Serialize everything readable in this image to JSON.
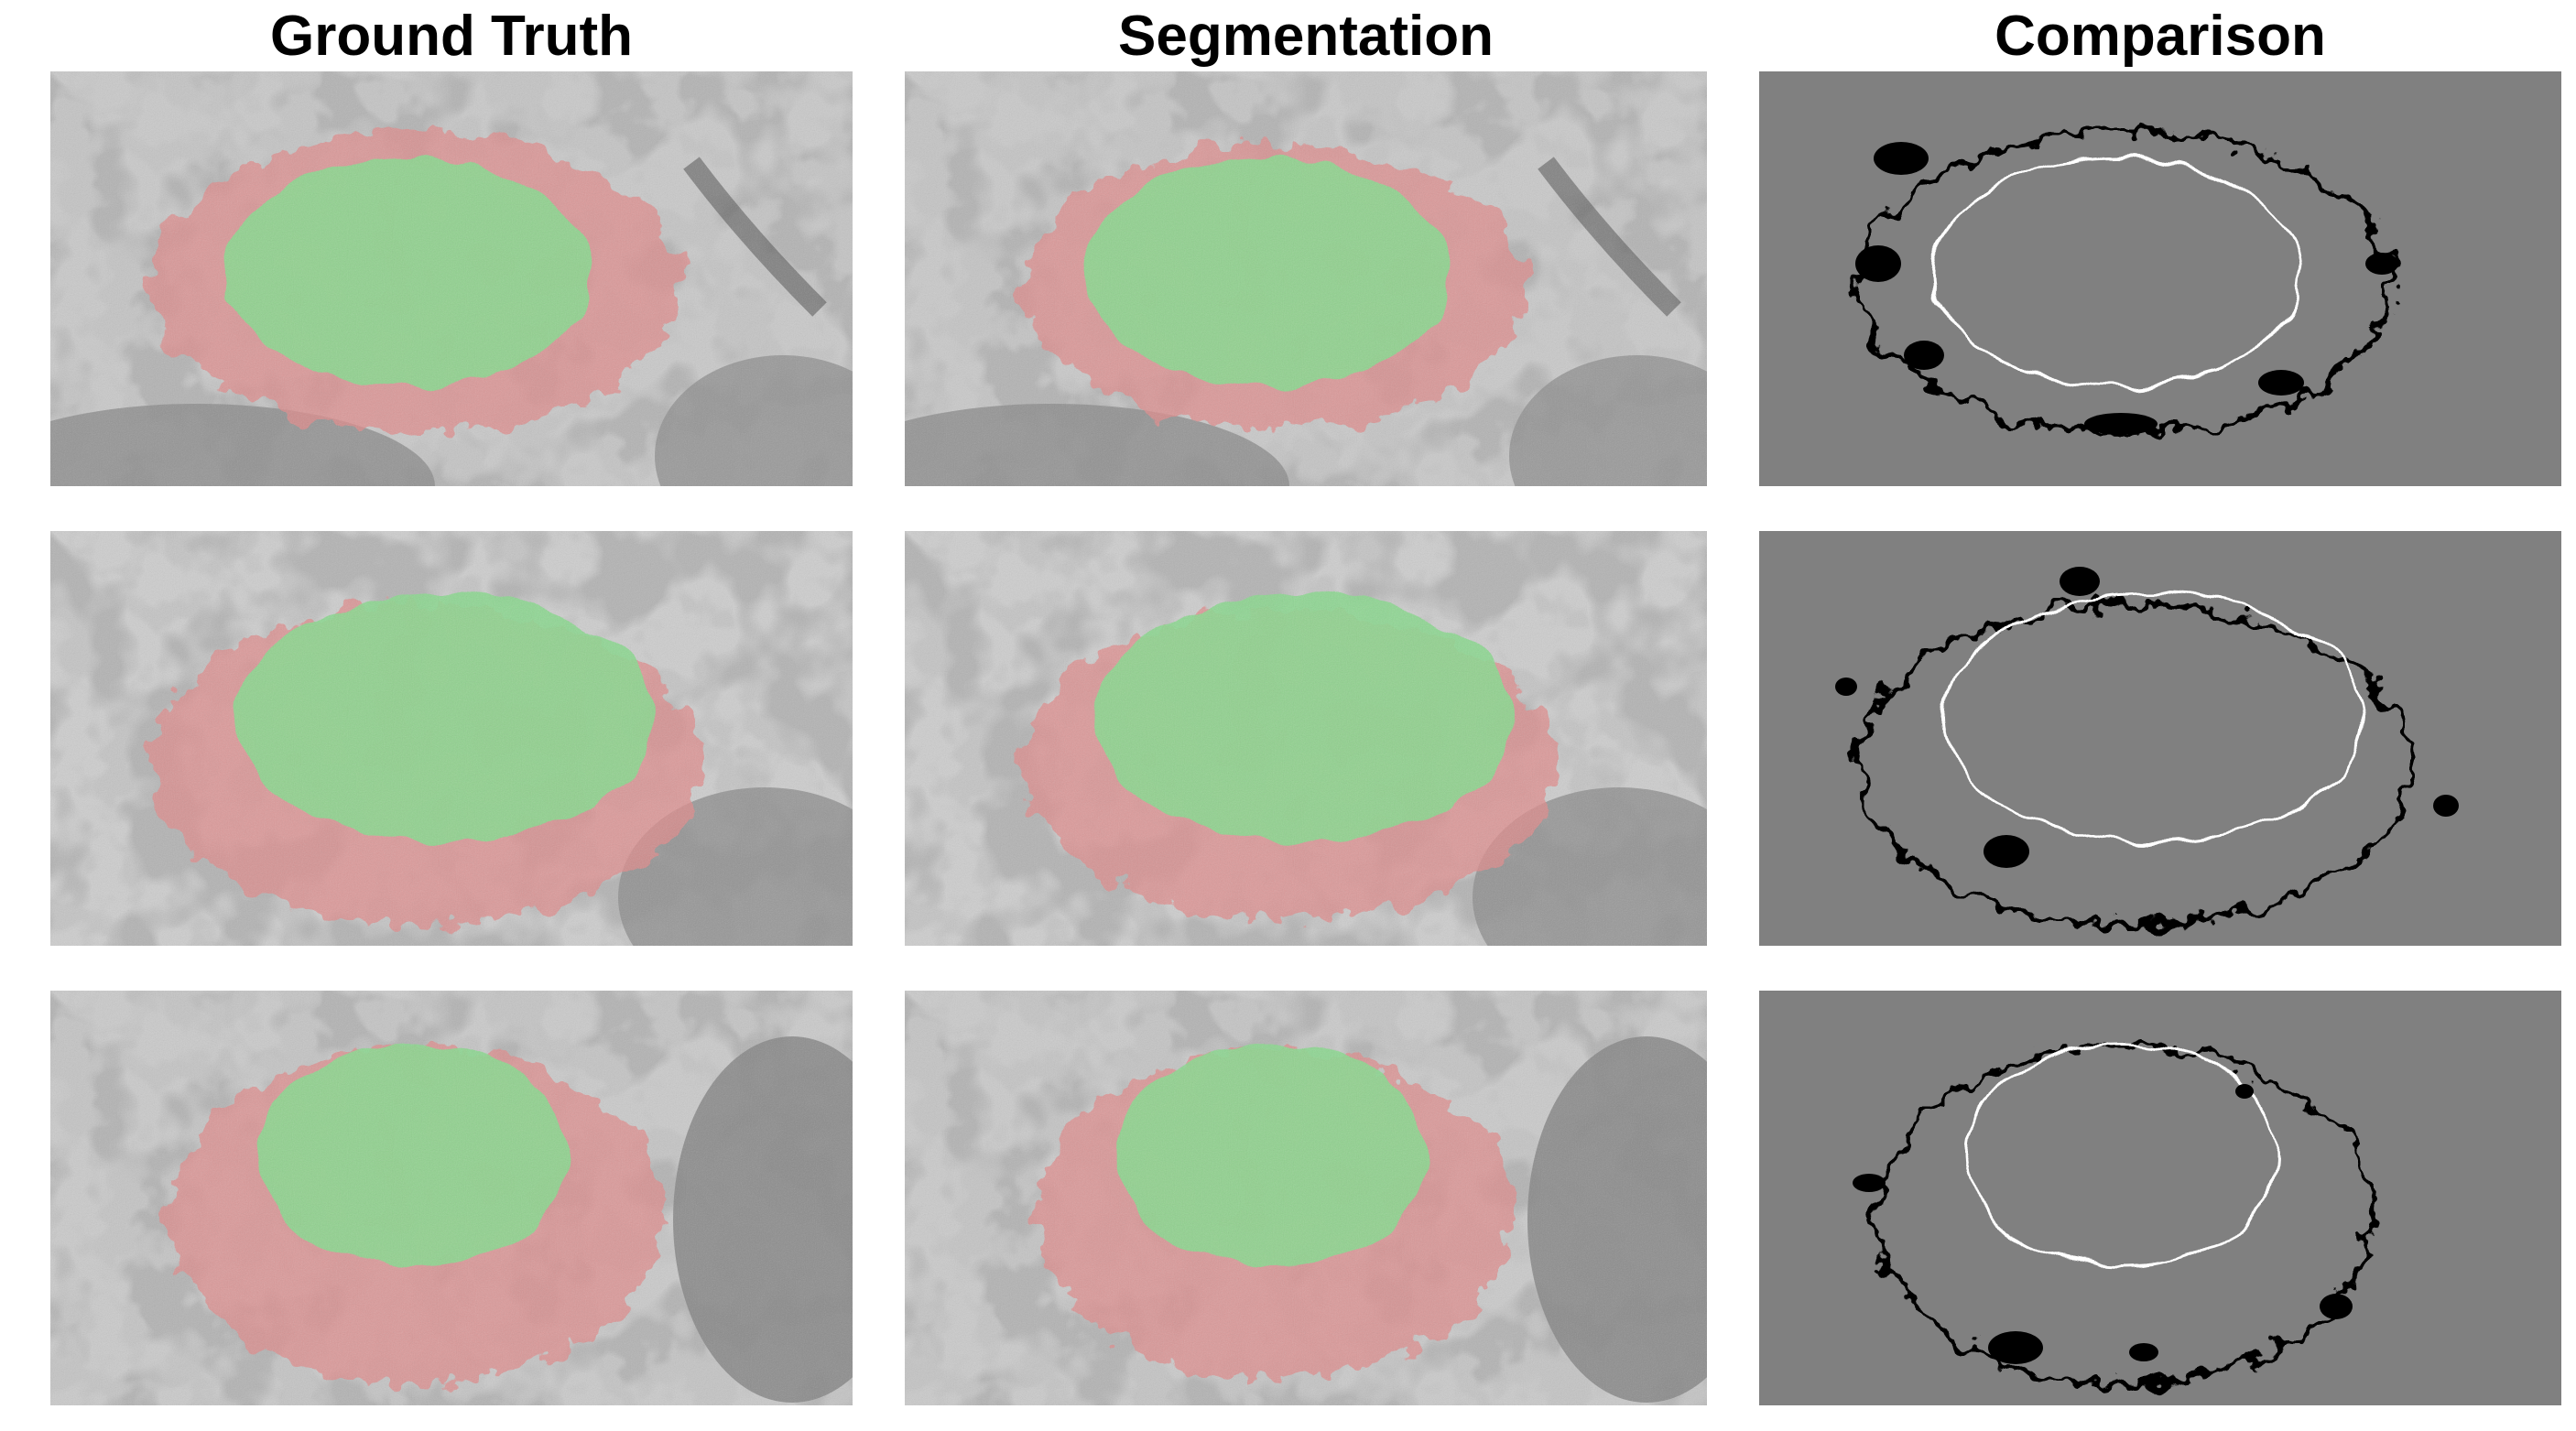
{
  "columns": [
    {
      "title": "Ground Truth",
      "kind": "overlay"
    },
    {
      "title": "Segmentation",
      "kind": "overlay"
    },
    {
      "title": "Comparison",
      "kind": "comparison"
    }
  ],
  "rows": 3,
  "colors": {
    "em_background": "#c9c9c9",
    "em_dark": "#7a7a7a",
    "cell_overlay": "#e08a8a",
    "nucleus_overlay": "#8ad88e",
    "comparison_background": "#808080",
    "comparison_mismatch_black": "#000000",
    "comparison_mismatch_white": "#ffffff"
  }
}
